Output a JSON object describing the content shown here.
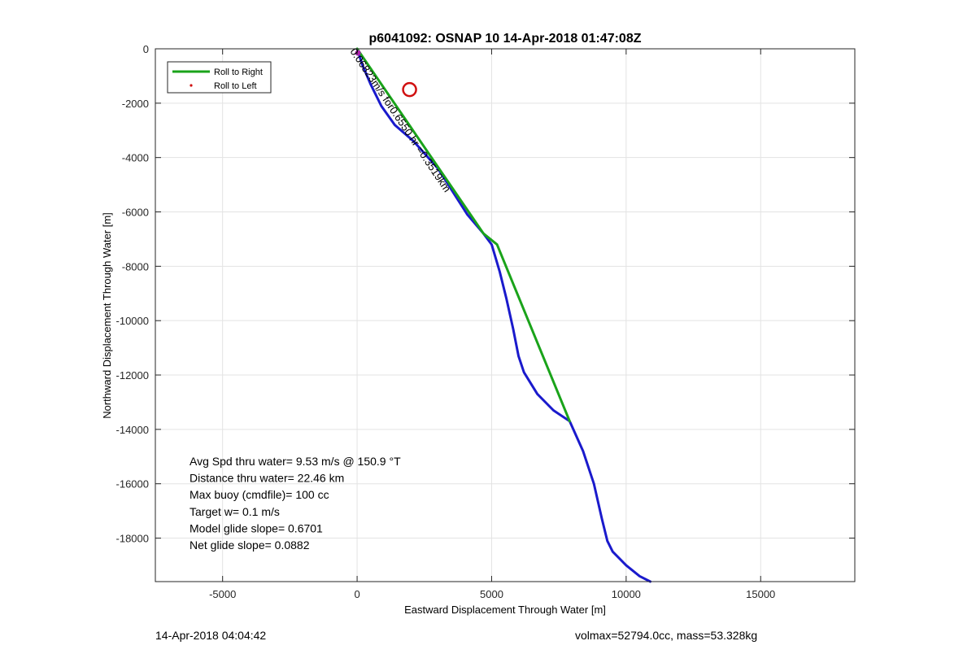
{
  "chart_data": {
    "type": "line",
    "title": "p6041092: OSNAP 10 14-Apr-2018 01:47:08Z",
    "xlabel": "Eastward Displacement Through Water [m]",
    "ylabel": "Northward Displacement Through Water [m]",
    "xlim": [
      -7500,
      18500
    ],
    "ylim": [
      -19600,
      0
    ],
    "xticks": [
      -5000,
      0,
      5000,
      10000,
      15000
    ],
    "yticks": [
      0,
      -2000,
      -4000,
      -6000,
      -8000,
      -10000,
      -12000,
      -14000,
      -16000,
      -18000
    ],
    "grid": true,
    "legend": {
      "position": "top-left",
      "entries": [
        {
          "label": "Roll to Right",
          "color": "#1aa31a",
          "style": "line"
        },
        {
          "label": "Roll to Left",
          "color": "#d01010",
          "style": "dot"
        }
      ]
    },
    "series": [
      {
        "name": "Roll to Right",
        "color": "#1aa31a",
        "x": [
          0,
          4700,
          5200,
          7900
        ],
        "y": [
          0,
          -6800,
          -7200,
          -13700
        ]
      },
      {
        "color": "#1a1acc",
        "x": [
          0,
          200,
          500,
          900,
          1400,
          2100,
          3000,
          4100,
          4700,
          5000,
          5300,
          5550,
          5800,
          6000,
          6200,
          6700,
          7300,
          7900,
          8400,
          8800,
          9100,
          9300,
          9500,
          10000,
          10500,
          10900
        ],
        "y": [
          0,
          -600,
          -1300,
          -2100,
          -2800,
          -3400,
          -4400,
          -6100,
          -6800,
          -7200,
          -8200,
          -9200,
          -10300,
          -11300,
          -11900,
          -12700,
          -13300,
          -13700,
          -14800,
          -16000,
          -17300,
          -18100,
          -18500,
          -19000,
          -19400,
          -19600
        ]
      }
    ],
    "markers": [
      {
        "x": 1950,
        "y": -1500,
        "shape": "circle",
        "color": "#d01010"
      },
      {
        "x": 30,
        "y": -150,
        "shape": "dot",
        "color": "#b020b0"
      }
    ],
    "annotation": {
      "text": "0.06823m/s for0.6550 hr =0.3519km",
      "x": 1500,
      "y": -2700,
      "rotation_deg": 56
    },
    "stats_text": [
      "Avg Spd thru water=  9.53 m/s @ 150.9 °T",
      "Distance thru water= 22.46 km",
      "Max buoy (cmdfile)= 100 cc",
      "Target w= 0.1 m/s",
      "Model glide slope= 0.6701",
      "Net glide slope= 0.0882"
    ]
  },
  "footer": {
    "left": "14-Apr-2018 04:04:42",
    "right": "volmax=52794.0cc, mass=53.328kg"
  }
}
